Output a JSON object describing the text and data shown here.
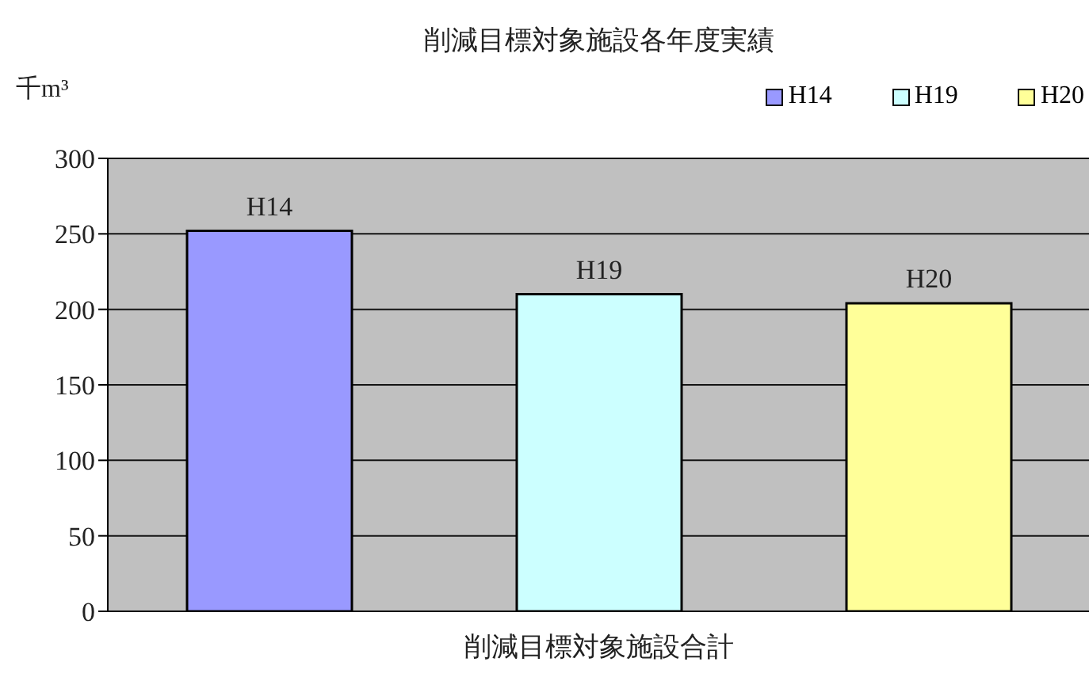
{
  "chart_data": {
    "type": "bar",
    "title": "削減目標対象施設各年度実績",
    "ylabel": "千m³",
    "categories": [
      "削減目標対象施設合計"
    ],
    "series": [
      {
        "name": "H14",
        "color": "#9999ff",
        "values": [
          252
        ]
      },
      {
        "name": "H19",
        "color": "#ccffff",
        "values": [
          210
        ]
      },
      {
        "name": "H20",
        "color": "#ffff99",
        "values": [
          204
        ]
      }
    ],
    "ylim": [
      0,
      300
    ],
    "yticks": [
      0,
      50,
      100,
      150,
      200,
      250,
      300
    ],
    "grid": "y",
    "legend": "top right"
  }
}
